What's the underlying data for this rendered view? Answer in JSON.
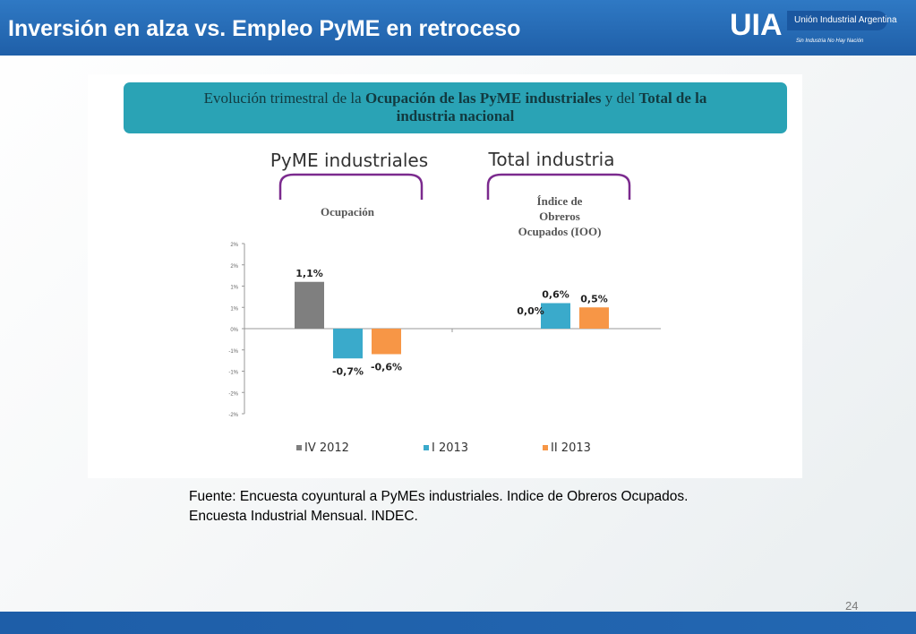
{
  "header": {
    "title": "Inversión en alza vs. Empleo PyME en retroceso"
  },
  "logo": {
    "mark": "UIA",
    "name": "Unión Industrial Argentina",
    "tagline": "Sin Industria No Hay Nación"
  },
  "banner": {
    "part1": "Evolución trimestral de la ",
    "bold1": "Ocupación de las PyME industriales",
    "part2": " y del ",
    "bold2": "Total de la industria nacional"
  },
  "groups": [
    {
      "heading": "PyME industriales",
      "sublabel_lines": [
        "Ocupación"
      ]
    },
    {
      "heading": "Total industria",
      "sublabel_lines": [
        "Índice de",
        "Obreros",
        "Ocupados (IOO)"
      ]
    }
  ],
  "colors": {
    "header": "#1f5fa8",
    "banner": "#2aa3b5",
    "bracket": "#7b2a8e",
    "IV 2012": "#7f7f7f",
    "I 2013": "#3aaacb",
    "II 2013": "#f79646"
  },
  "chart_data": {
    "type": "bar",
    "categories": [
      "Ocupación",
      "Índice de Obreros Ocupados (IOO)"
    ],
    "series": [
      {
        "name": "IV 2012",
        "values": [
          1.1,
          0.0
        ],
        "labels": [
          "1,1%",
          "0,0%"
        ]
      },
      {
        "name": "I 2013",
        "values": [
          -0.7,
          0.6
        ],
        "labels": [
          "-0,7%",
          "0,6%"
        ]
      },
      {
        "name": "II 2013",
        "values": [
          -0.6,
          0.5
        ],
        "labels": [
          "-0,6%",
          "0,5%"
        ]
      }
    ],
    "y_ticks": [
      2,
      1.5,
      1,
      0.5,
      0,
      -0.5,
      -1,
      -1.5,
      -2
    ],
    "y_tick_labels": [
      "2%",
      "2%",
      "1%",
      "1%",
      "0%",
      "-1%",
      "-1%",
      "-2%",
      "-2%"
    ],
    "ylim": [
      -2,
      2
    ],
    "grid": false,
    "legend_position": "bottom"
  },
  "source_text": "Fuente: Encuesta coyuntural a PyMEs industriales. Indice de Obreros Ocupados. Encuesta Industrial Mensual. INDEC.",
  "page_number": "24"
}
